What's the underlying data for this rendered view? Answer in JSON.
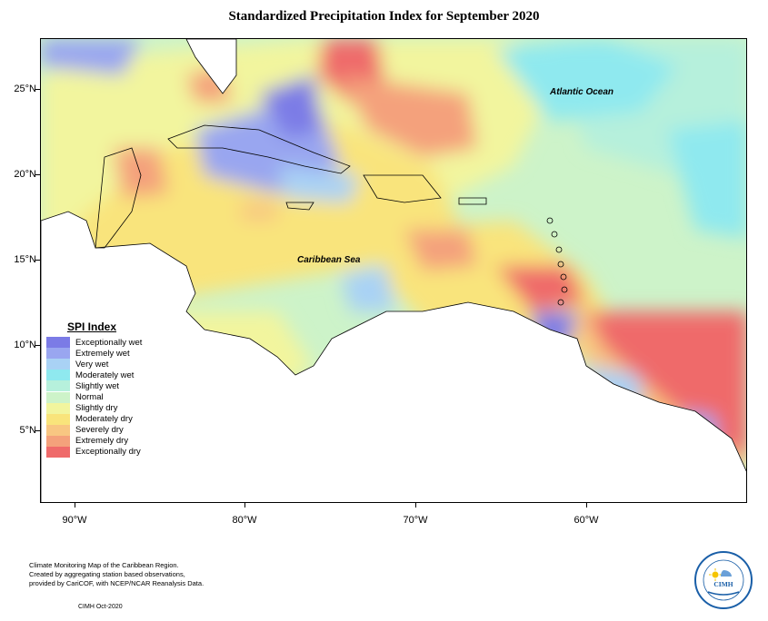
{
  "title": "Standardized Precipitation Index for September 2020",
  "labels": {
    "ocean": "Atlantic Ocean",
    "sea": "Caribbean Sea"
  },
  "axes": {
    "x_ticks": [
      "90°W",
      "80°W",
      "70°W",
      "60°W"
    ],
    "y_ticks": [
      "25°N",
      "20°N",
      "15°N",
      "10°N",
      "5°N"
    ]
  },
  "legend": {
    "title": "SPI Index",
    "items": [
      {
        "label": "Exceptionally wet",
        "color": "#7b7be6"
      },
      {
        "label": "Extremely wet",
        "color": "#99a6f0"
      },
      {
        "label": "Very wet",
        "color": "#a9d2f5"
      },
      {
        "label": "Moderately wet",
        "color": "#8fe9ef"
      },
      {
        "label": "Slightly wet",
        "color": "#b6f0dc"
      },
      {
        "label": "Normal",
        "color": "#cdf3c9"
      },
      {
        "label": "Slightly dry",
        "color": "#f2f59e"
      },
      {
        "label": "Moderately dry",
        "color": "#f9e47b"
      },
      {
        "label": "Severely dry",
        "color": "#f8c682"
      },
      {
        "label": "Extremely dry",
        "color": "#f4a17b"
      },
      {
        "label": "Exceptionally dry",
        "color": "#ef6a6a"
      }
    ]
  },
  "footer": {
    "line1": "Climate Monitoring Map of the Caribbean Region.",
    "line2": "Created by aggregating station based observations,",
    "line3": "provided by CariCOF, with NCEP/NCAR Reanalysis Data.",
    "date": "CIMH Oct-2020"
  },
  "logo": {
    "name": "CIMH",
    "color": "#1a5fa8"
  }
}
